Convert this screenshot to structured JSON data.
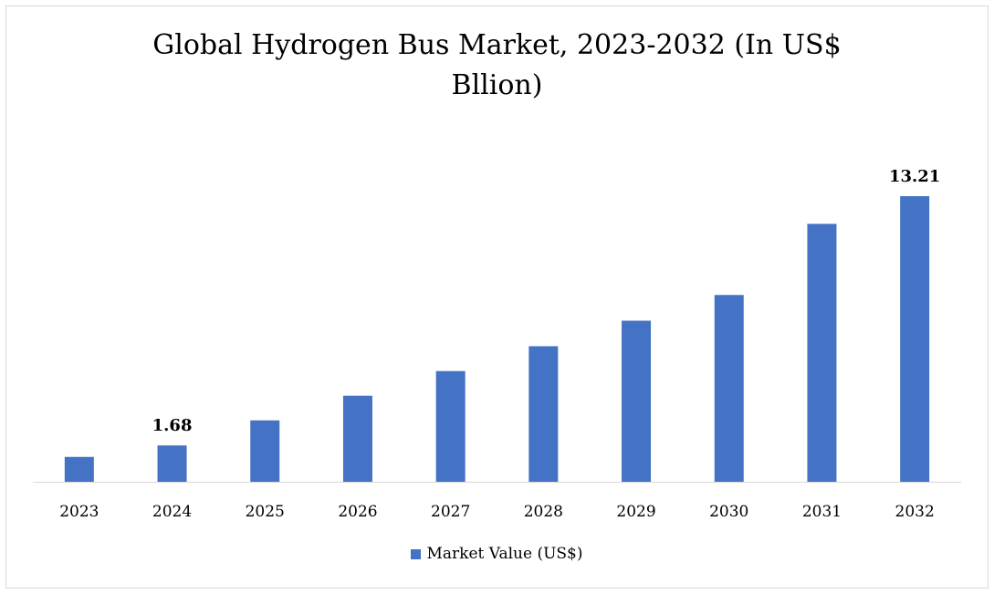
{
  "chart_data": {
    "type": "bar",
    "title_line1": "Global Hydrogen Bus Market, 2023-2032 (In US$",
    "title_line2": "Bllion)",
    "categories": [
      "2023",
      "2024",
      "2025",
      "2026",
      "2027",
      "2028",
      "2029",
      "2030",
      "2031",
      "2032"
    ],
    "series": [
      {
        "name": "Market Value (US$)",
        "color": "#4472c4",
        "values": [
          1.15,
          1.68,
          2.84,
          3.98,
          5.12,
          6.27,
          7.45,
          8.64,
          11.93,
          13.21
        ],
        "data_labels": {
          "1": "1.68",
          "9": "13.21"
        }
      }
    ],
    "ylim": [
      0,
      13.21
    ],
    "grid": false,
    "legend_position": "bottom"
  }
}
